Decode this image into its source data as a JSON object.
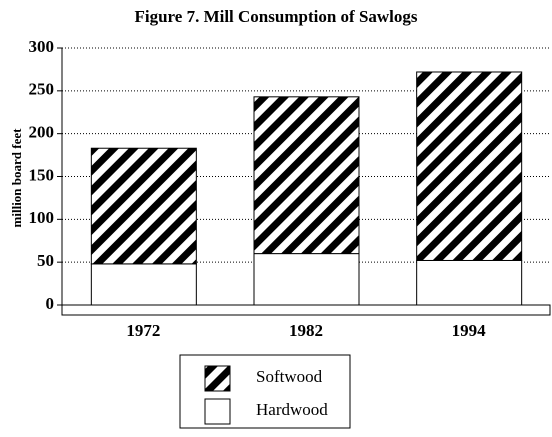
{
  "chart_data": {
    "type": "stacked_bar",
    "title": "Figure 7.  Mill Consumption of Sawlogs",
    "y_label": "million board feet",
    "categories": [
      "1972",
      "1982",
      "1994"
    ],
    "series": [
      {
        "name": "Hardwood",
        "color": "#ffffff",
        "values": [
          48,
          60,
          52
        ]
      },
      {
        "name": "Softwood",
        "color": "#000000",
        "hatch": "diagonal",
        "values": [
          135,
          183,
          220
        ]
      }
    ],
    "ylim": [
      0,
      300
    ],
    "yticks": [
      0,
      50,
      100,
      150,
      200,
      250,
      300
    ],
    "grid": true
  }
}
